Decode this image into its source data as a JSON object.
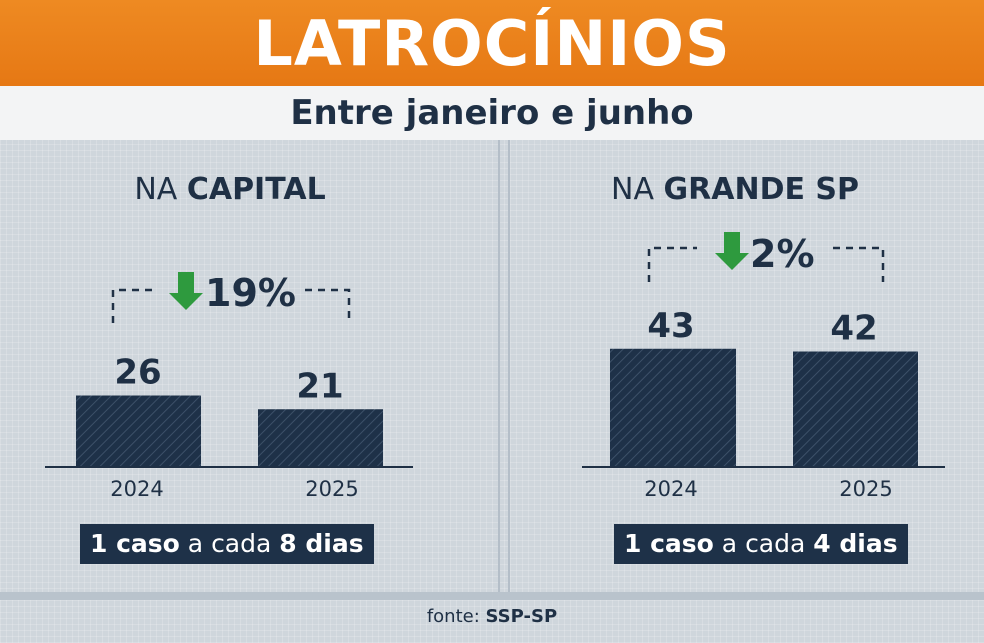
{
  "title": "LATROCÍNIOS",
  "subtitle": "Entre janeiro e junho",
  "colors": {
    "header": "#e67814",
    "bar": "#1e3148",
    "arrow": "#2e9a3e",
    "text": "#1f3045"
  },
  "chart_data": [
    {
      "type": "bar",
      "title_prefix": "NA",
      "title_bold": "CAPITAL",
      "categories": [
        "2024",
        "2025"
      ],
      "values": [
        26,
        21
      ],
      "value_labels": [
        "26",
        "21"
      ],
      "change_label": "19%",
      "change_direction": "down",
      "change_icon": "arrow-down-icon",
      "ylim": [
        0,
        50
      ],
      "footnote": {
        "count": "1 caso",
        "middle": "a cada",
        "period": "8 dias"
      }
    },
    {
      "type": "bar",
      "title_prefix": "NA",
      "title_bold": "GRANDE SP",
      "categories": [
        "2024",
        "2025"
      ],
      "values": [
        43,
        42
      ],
      "value_labels": [
        "43",
        "42"
      ],
      "change_label": "2%",
      "change_direction": "down",
      "change_icon": "arrow-down-icon",
      "ylim": [
        0,
        50
      ],
      "footnote": {
        "count": "1 caso",
        "middle": "a cada",
        "period": "4 dias"
      }
    }
  ],
  "source": {
    "label": "fonte:",
    "name": "SSP-SP"
  }
}
